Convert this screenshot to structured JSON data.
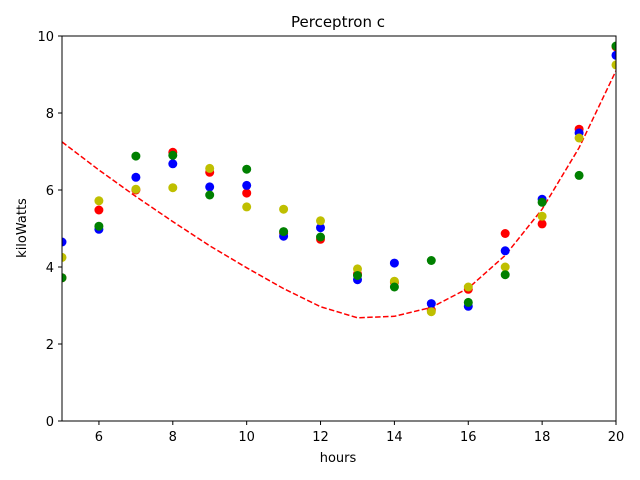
{
  "chart_data": {
    "type": "scatter",
    "title": "Perceptron c",
    "xlabel": "hours",
    "ylabel": "kiloWatts",
    "xlim": [
      5,
      20
    ],
    "ylim": [
      0,
      10
    ],
    "xticks": [
      6,
      8,
      10,
      12,
      14,
      16,
      18,
      20
    ],
    "yticks": [
      0,
      2,
      4,
      6,
      8,
      10
    ],
    "grid": false,
    "legend": "none",
    "series": [
      {
        "color": "#ff0000",
        "marker": "circle",
        "points": [
          [
            5,
            3.72
          ],
          [
            6,
            5.48
          ],
          [
            7,
            6.0
          ],
          [
            8,
            6.98
          ],
          [
            9,
            6.46
          ],
          [
            10,
            5.92
          ],
          [
            11,
            4.88
          ],
          [
            12,
            4.72
          ],
          [
            13,
            3.82
          ],
          [
            14,
            3.6
          ],
          [
            15,
            2.88
          ],
          [
            16,
            3.42
          ],
          [
            17,
            4.87
          ],
          [
            18,
            5.12
          ],
          [
            19,
            7.58
          ],
          [
            20,
            9.72
          ]
        ]
      },
      {
        "color": "#0000ff",
        "marker": "circle",
        "points": [
          [
            5,
            4.65
          ],
          [
            6,
            4.98
          ],
          [
            7,
            6.33
          ],
          [
            8,
            6.68
          ],
          [
            9,
            6.08
          ],
          [
            10,
            6.12
          ],
          [
            11,
            4.8
          ],
          [
            12,
            5.02
          ],
          [
            13,
            3.67
          ],
          [
            14,
            4.1
          ],
          [
            15,
            3.05
          ],
          [
            16,
            2.98
          ],
          [
            17,
            4.42
          ],
          [
            18,
            5.76
          ],
          [
            19,
            7.48
          ],
          [
            20,
            9.5
          ]
        ]
      },
      {
        "color": "#bfbf00",
        "marker": "circle",
        "points": [
          [
            5,
            4.25
          ],
          [
            6,
            5.72
          ],
          [
            7,
            6.02
          ],
          [
            8,
            6.06
          ],
          [
            9,
            6.56
          ],
          [
            10,
            5.56
          ],
          [
            11,
            5.5
          ],
          [
            12,
            5.2
          ],
          [
            13,
            3.95
          ],
          [
            14,
            3.63
          ],
          [
            15,
            2.84
          ],
          [
            16,
            3.48
          ],
          [
            17,
            4.0
          ],
          [
            18,
            5.32
          ],
          [
            19,
            7.35
          ],
          [
            20,
            9.25
          ]
        ]
      },
      {
        "color": "#008000",
        "marker": "circle",
        "points": [
          [
            5,
            3.72
          ],
          [
            6,
            5.06
          ],
          [
            7,
            6.88
          ],
          [
            8,
            6.9
          ],
          [
            9,
            5.87
          ],
          [
            10,
            6.54
          ],
          [
            11,
            4.92
          ],
          [
            12,
            4.78
          ],
          [
            13,
            3.78
          ],
          [
            14,
            3.48
          ],
          [
            15,
            4.17
          ],
          [
            16,
            3.08
          ],
          [
            17,
            3.8
          ],
          [
            18,
            5.68
          ],
          [
            19,
            6.38
          ],
          [
            20,
            9.74
          ]
        ]
      }
    ],
    "fit_curve": {
      "color": "#ff0000",
      "style": "dashed",
      "x": [
        5,
        6,
        7,
        8,
        9,
        10,
        11,
        12,
        13,
        14,
        15,
        16,
        17,
        18,
        19,
        20
      ],
      "y": [
        7.25,
        6.52,
        5.83,
        5.18,
        4.55,
        3.98,
        3.44,
        2.97,
        2.68,
        2.72,
        2.95,
        3.45,
        4.3,
        5.5,
        7.1,
        9.1
      ]
    }
  }
}
